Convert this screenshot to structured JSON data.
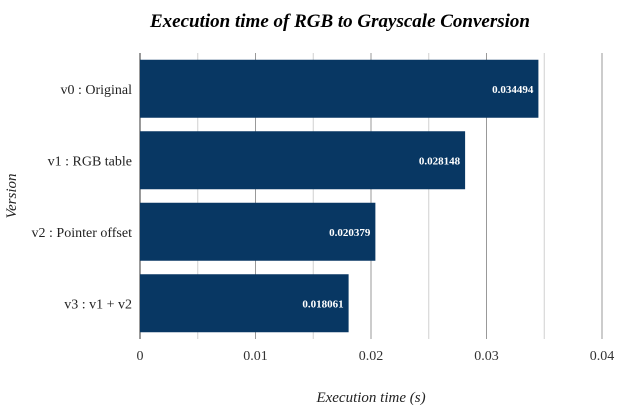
{
  "chart_data": {
    "type": "bar",
    "orientation": "horizontal",
    "title": "Execution time of RGB to Grayscale Conversion",
    "xlabel": "Execution time (s)",
    "ylabel": "Version",
    "categories": [
      "v0 : Original",
      "v1 : RGB table",
      "v2 : Pointer offset",
      "v3 : v1 + v2"
    ],
    "values": [
      0.034494,
      0.028148,
      0.020379,
      0.018061
    ],
    "data_labels": [
      "0.034494",
      "0.028148",
      "0.020379",
      "0.018061"
    ],
    "xlim": [
      0,
      0.04
    ],
    "x_ticks": [
      0,
      0.005,
      0.01,
      0.015,
      0.02,
      0.025,
      0.03,
      0.035,
      0.04
    ],
    "x_tick_labels": [
      "0",
      "",
      "0.01",
      "",
      "0.02",
      "",
      "0.03",
      "",
      "0.04"
    ],
    "grid": true,
    "legend": "none",
    "colors": {
      "bar": "#083763",
      "major_grid": "#999999",
      "minor_grid": "#d0d0d0",
      "axis": "#333333"
    }
  }
}
